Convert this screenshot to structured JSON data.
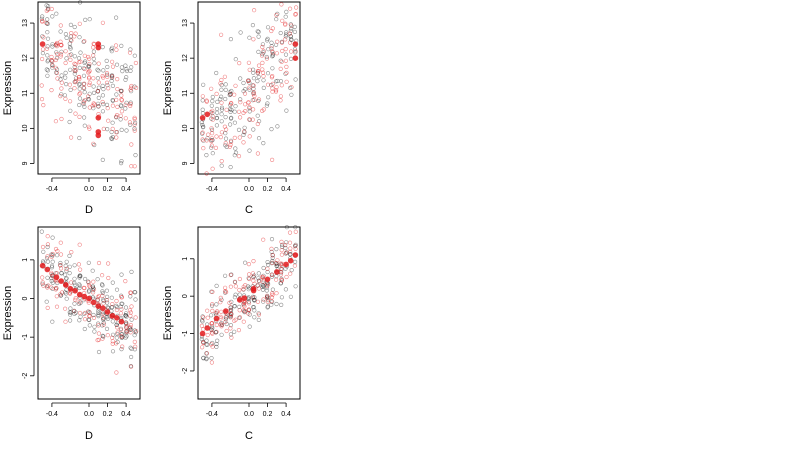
{
  "chart_data": [
    {
      "type": "scatter",
      "xlabel": "D",
      "ylabel": "Expression",
      "xlim": [
        -0.55,
        0.55
      ],
      "ylim": [
        8.7,
        13.6
      ],
      "xticks": [
        -0.4,
        0.0,
        0.2,
        0.4
      ],
      "xtick_labels": [
        "-0.4",
        "0.0",
        "0.2",
        "0.4"
      ],
      "yticks": [
        9,
        10,
        11,
        12,
        13
      ],
      "ytick_labels": [
        "9",
        "10",
        "11",
        "12",
        "13"
      ],
      "trend": {
        "x0": -0.5,
        "x1": 0.5,
        "y0": 12.4,
        "y1": 10.5,
        "spread": 0.8
      },
      "highlight_points": [
        {
          "x": -0.5,
          "y": 12.4
        },
        {
          "x": 0.1,
          "y": 12.4
        },
        {
          "x": 0.1,
          "y": 12.3
        },
        {
          "x": 0.1,
          "y": 10.3
        },
        {
          "x": 0.1,
          "y": 9.9
        },
        {
          "x": 0.1,
          "y": 9.8
        }
      ],
      "colors": {
        "black_series": "#000000",
        "red_series": "#e31a1c"
      },
      "grid": false
    },
    {
      "type": "scatter",
      "xlabel": "C",
      "ylabel": "Expression",
      "xlim": [
        -0.55,
        0.55
      ],
      "ylim": [
        8.7,
        13.6
      ],
      "xticks": [
        -0.4,
        0.0,
        0.2,
        0.4
      ],
      "xtick_labels": [
        "-0.4",
        "0.0",
        "0.2",
        "0.4"
      ],
      "yticks": [
        9,
        10,
        11,
        12,
        13
      ],
      "ytick_labels": [
        "9",
        "10",
        "11",
        "12",
        "13"
      ],
      "trend": {
        "x0": -0.5,
        "x1": 0.5,
        "y0": 9.7,
        "y1": 12.5,
        "spread": 0.8
      },
      "highlight_points": [
        {
          "x": -0.5,
          "y": 10.3
        },
        {
          "x": -0.45,
          "y": 10.4
        },
        {
          "x": 0.5,
          "y": 12.4
        },
        {
          "x": 0.5,
          "y": 12.0
        }
      ],
      "colors": {
        "black_series": "#000000",
        "red_series": "#e31a1c"
      },
      "grid": false
    },
    {
      "type": "scatter",
      "xlabel": "D",
      "ylabel": "Expression",
      "xlim": [
        -0.55,
        0.55
      ],
      "ylim": [
        -2.6,
        1.85
      ],
      "xticks": [
        -0.4,
        0.0,
        0.2,
        0.4
      ],
      "xtick_labels": [
        "-0.4",
        "0.0",
        "0.2",
        "0.4"
      ],
      "yticks": [
        -2,
        -1,
        0,
        1
      ],
      "ytick_labels": [
        "-2",
        "-1",
        "0",
        "1"
      ],
      "trend": {
        "x0": -0.5,
        "x1": 0.5,
        "y0": 0.85,
        "y1": -0.85,
        "spread": 0.5
      },
      "fitted_points": [
        {
          "x": -0.5,
          "y": 0.85
        },
        {
          "x": -0.45,
          "y": 0.75
        },
        {
          "x": -0.35,
          "y": 0.55
        },
        {
          "x": -0.3,
          "y": 0.45
        },
        {
          "x": -0.25,
          "y": 0.35
        },
        {
          "x": -0.2,
          "y": 0.25
        },
        {
          "x": -0.15,
          "y": 0.2
        },
        {
          "x": -0.1,
          "y": 0.1
        },
        {
          "x": -0.05,
          "y": 0.05
        },
        {
          "x": 0.0,
          "y": 0.0
        },
        {
          "x": 0.05,
          "y": -0.1
        },
        {
          "x": 0.1,
          "y": -0.2
        },
        {
          "x": 0.15,
          "y": -0.25
        },
        {
          "x": 0.2,
          "y": -0.35
        },
        {
          "x": 0.25,
          "y": -0.45
        },
        {
          "x": 0.3,
          "y": -0.5
        },
        {
          "x": 0.35,
          "y": -0.6
        }
      ],
      "colors": {
        "black_series": "#000000",
        "red_series": "#e31a1c"
      },
      "grid": false
    },
    {
      "type": "scatter",
      "xlabel": "C",
      "ylabel": "Expression",
      "xlim": [
        -0.55,
        0.55
      ],
      "ylim": [
        -2.75,
        1.85
      ],
      "xticks": [
        -0.4,
        0.0,
        0.2,
        0.4
      ],
      "xtick_labels": [
        "-0.4",
        "0.0",
        "0.2",
        "0.4"
      ],
      "yticks": [
        -2,
        -1,
        0,
        1
      ],
      "ytick_labels": [
        "-2",
        "-1",
        "0",
        "1"
      ],
      "trend": {
        "x0": -0.5,
        "x1": 0.5,
        "y0": -1.0,
        "y1": 1.1,
        "spread": 0.45
      },
      "fitted_points": [
        {
          "x": -0.5,
          "y": -1.0
        },
        {
          "x": -0.45,
          "y": -0.85
        },
        {
          "x": -0.35,
          "y": -0.6
        },
        {
          "x": -0.25,
          "y": -0.4
        },
        {
          "x": -0.1,
          "y": -0.1
        },
        {
          "x": -0.05,
          "y": -0.05
        },
        {
          "x": 0.05,
          "y": 0.15
        },
        {
          "x": 0.05,
          "y": 0.2
        },
        {
          "x": 0.2,
          "y": 0.45
        },
        {
          "x": 0.3,
          "y": 0.65
        },
        {
          "x": 0.4,
          "y": 0.85
        },
        {
          "x": 0.45,
          "y": 0.95
        },
        {
          "x": 0.5,
          "y": 1.1
        }
      ],
      "colors": {
        "black_series": "#000000",
        "red_series": "#e31a1c"
      },
      "grid": false
    }
  ]
}
